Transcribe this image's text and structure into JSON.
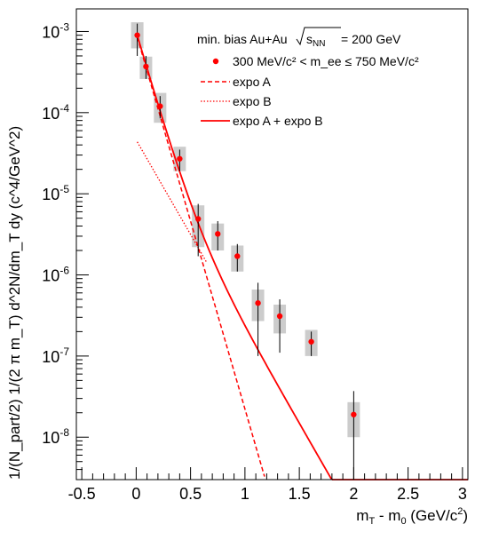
{
  "chart_data": {
    "type": "scatter",
    "title": "",
    "xlabel": {
      "base": "m",
      "base_sub": "T",
      "mid": " - m",
      "mid_sub": "0",
      "unit": " (GeV/c",
      "unit_sup": "2",
      "close": ")"
    },
    "ylabel": "1/(N_part/2) 1/(2 π m_T) d^2N/dm_T dy (c^4/GeV^2)",
    "xlim": [
      -0.55,
      3.05
    ],
    "ylim": [
      3e-09,
      0.0019
    ],
    "yscale": "log",
    "x_ticks": [
      {
        "v": -0.5,
        "label": "-0.5"
      },
      {
        "v": 0,
        "label": "0"
      },
      {
        "v": 0.5,
        "label": "0.5"
      },
      {
        "v": 1,
        "label": "1"
      },
      {
        "v": 1.5,
        "label": "1.5"
      },
      {
        "v": 2,
        "label": "2"
      },
      {
        "v": 2.5,
        "label": "2.5"
      },
      {
        "v": 3,
        "label": "3"
      }
    ],
    "y_ticks": [
      {
        "exp": -3,
        "label": "10",
        "sup": "-3"
      },
      {
        "exp": -4,
        "label": "10",
        "sup": "-4"
      },
      {
        "exp": -5,
        "label": "10",
        "sup": "-5"
      },
      {
        "exp": -6,
        "label": "10",
        "sup": "-6"
      },
      {
        "exp": -7,
        "label": "10",
        "sup": "-7"
      },
      {
        "exp": -8,
        "label": "10",
        "sup": "-8"
      }
    ],
    "legend_placement": "top-right",
    "legend": {
      "header": "min. bias Au+Au",
      "header_sqrt": "s",
      "header_sqrt_sub": "NN",
      "header_value": " = 200 GeV",
      "data_label": "300 MeV/c² < m_ee ≤ 750 MeV/c²",
      "expo_a": "expo A",
      "expo_b": "expo B",
      "sum": "expo A + expo B"
    },
    "series": [
      {
        "name": "300 MeV/c² < m_ee ≤ 750 MeV/c²",
        "points": [
          {
            "x": 0.01,
            "y": 0.0009,
            "yhi": 0.00125,
            "ylo": 0.0005,
            "syshi": 0.0013,
            "syslo": 0.00062
          },
          {
            "x": 0.09,
            "y": 0.00037,
            "yhi": 0.0005,
            "ylo": 0.00026,
            "syshi": 0.00049,
            "syslo": 0.00026
          },
          {
            "x": 0.22,
            "y": 0.00012,
            "yhi": 0.00016,
            "ylo": 8.5e-05,
            "syshi": 0.000175,
            "syslo": 7.5e-05
          },
          {
            "x": 0.4,
            "y": 2.7e-05,
            "yhi": 3.5e-05,
            "ylo": 1.9e-05,
            "syshi": 3.8e-05,
            "syslo": 1.9e-05
          },
          {
            "x": 0.57,
            "y": 4.9e-06,
            "yhi": 7.5e-06,
            "ylo": 1.7e-06,
            "syshi": 7.2e-06,
            "syslo": 2.2e-06
          },
          {
            "x": 0.75,
            "y": 3.2e-06,
            "yhi": 4.6e-06,
            "ylo": 2e-06,
            "syshi": 4.3e-06,
            "syslo": 2e-06
          },
          {
            "x": 0.93,
            "y": 1.7e-06,
            "yhi": 2.4e-06,
            "ylo": 1.1e-06,
            "syshi": 2.3e-06,
            "syslo": 1.1e-06
          },
          {
            "x": 1.12,
            "y": 4.5e-07,
            "yhi": 8e-07,
            "ylo": 1e-07,
            "syshi": 6.6e-07,
            "syslo": 2.7e-07
          },
          {
            "x": 1.32,
            "y": 3.1e-07,
            "yhi": 5e-07,
            "ylo": 1.1e-07,
            "syshi": 4.3e-07,
            "syslo": 1.9e-07
          },
          {
            "x": 1.61,
            "y": 1.5e-07,
            "yhi": 2e-07,
            "ylo": 1e-07,
            "syshi": 2.1e-07,
            "syslo": 1e-07
          },
          {
            "x": 2.0,
            "y": 1.9e-08,
            "yhi": 3.7e-08,
            "ylo": 3e-09,
            "syshi": 2.7e-08,
            "syslo": 1e-08
          }
        ]
      },
      {
        "name": "expo A",
        "style": "dashed",
        "A": 0.00095,
        "slope": 0.0938,
        "xmax": 1.18
      },
      {
        "name": "expo B",
        "style": "dotted",
        "A": 4.6e-05,
        "slope": 0.1865,
        "xmin": 0.01,
        "xmax": 0.65
      },
      {
        "name": "expo A + expo B",
        "style": "solid",
        "xmin": 0.01,
        "xmax": 2.52
      }
    ],
    "colors": {
      "data": "#ff0000",
      "fit": "#ff0000",
      "sys_box": "#cccccc",
      "stat_bar": "#000000"
    }
  }
}
